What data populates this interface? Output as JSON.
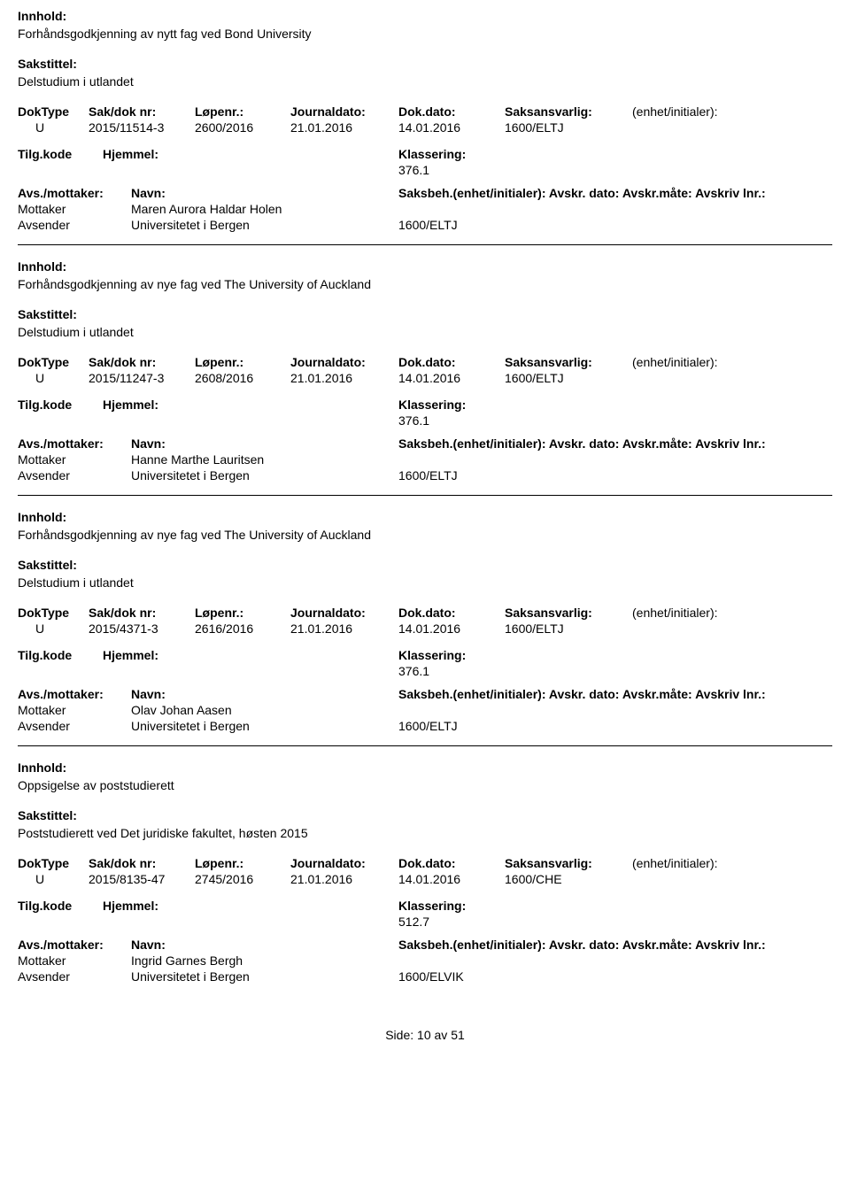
{
  "labels": {
    "innhold": "Innhold:",
    "sakstittel": "Sakstittel:",
    "doktype": "DokType",
    "sakdok": "Sak/dok nr:",
    "lopenr": "Løpenr.:",
    "journaldato": "Journaldato:",
    "dokdato": "Dok.dato:",
    "saksansvarlig": "Saksansvarlig:",
    "enhet": "(enhet/initialer):",
    "tilgkode": "Tilg.kode",
    "hjemmel": "Hjemmel:",
    "klassering": "Klassering:",
    "avsmottaker": "Avs./mottaker:",
    "navn": "Navn:",
    "saksbeh_long": "Saksbeh.(enhet/initialer): Avskr. dato:  Avskr.måte:  Avskriv lnr.:",
    "mottaker": "Mottaker",
    "avsender": "Avsender",
    "side": "Side:",
    "av": "av"
  },
  "entries": [
    {
      "innhold": "Forhåndsgodkjenning av nytt fag ved Bond University",
      "sakstittel": "Delstudium i utlandet",
      "doktype": "U",
      "sakdok": "2015/11514-3",
      "lopenr": "2600/2016",
      "journaldato": "21.01.2016",
      "dokdato": "14.01.2016",
      "saksansvarlig": "1600/ELTJ",
      "klassering": "376.1",
      "mottaker": "Maren Aurora Haldar Holen",
      "avsender": "Universitetet i Bergen",
      "avsender_code": "1600/ELTJ"
    },
    {
      "innhold": "Forhåndsgodkjenning av nye fag ved The University of Auckland",
      "sakstittel": "Delstudium i utlandet",
      "doktype": "U",
      "sakdok": "2015/11247-3",
      "lopenr": "2608/2016",
      "journaldato": "21.01.2016",
      "dokdato": "14.01.2016",
      "saksansvarlig": "1600/ELTJ",
      "klassering": "376.1",
      "mottaker": "Hanne Marthe Lauritsen",
      "avsender": "Universitetet i Bergen",
      "avsender_code": "1600/ELTJ"
    },
    {
      "innhold": "Forhåndsgodkjenning av nye fag ved The University of Auckland",
      "sakstittel": "Delstudium i utlandet",
      "doktype": "U",
      "sakdok": "2015/4371-3",
      "lopenr": "2616/2016",
      "journaldato": "21.01.2016",
      "dokdato": "14.01.2016",
      "saksansvarlig": "1600/ELTJ",
      "klassering": "376.1",
      "mottaker": "Olav Johan Aasen",
      "avsender": "Universitetet i Bergen",
      "avsender_code": "1600/ELTJ"
    },
    {
      "innhold": "Oppsigelse av poststudierett",
      "sakstittel": "Poststudierett ved Det juridiske fakultet, høsten 2015",
      "doktype": "U",
      "sakdok": "2015/8135-47",
      "lopenr": "2745/2016",
      "journaldato": "21.01.2016",
      "dokdato": "14.01.2016",
      "saksansvarlig": "1600/CHE",
      "klassering": "512.7",
      "mottaker": "Ingrid Garnes Bergh",
      "avsender": "Universitetet i Bergen",
      "avsender_code": "1600/ELVIK"
    }
  ],
  "footer": {
    "page": "10",
    "total": "51"
  }
}
